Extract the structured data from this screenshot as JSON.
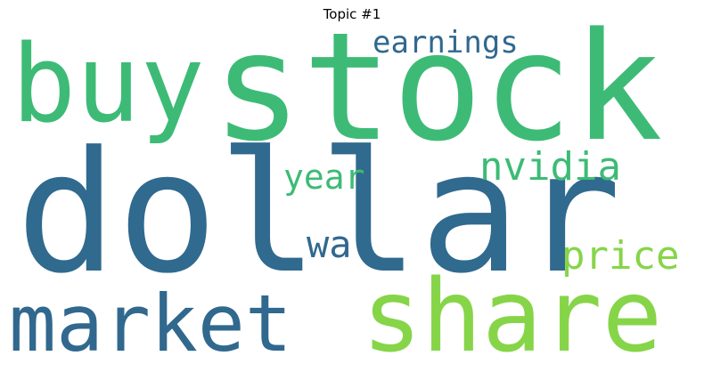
{
  "title": "Topic #1",
  "words": [
    {
      "text": "dollar",
      "color": "#306a8e"
    },
    {
      "text": "stock",
      "color": "#3dbb76"
    },
    {
      "text": "buy",
      "color": "#3dbb76"
    },
    {
      "text": "market",
      "color": "#31688e"
    },
    {
      "text": "share",
      "color": "#86d549"
    },
    {
      "text": "earnings",
      "color": "#31688e"
    },
    {
      "text": "nvidia",
      "color": "#3dbb76"
    },
    {
      "text": "year",
      "color": "#3dbb76"
    },
    {
      "text": "wa",
      "color": "#31688e"
    },
    {
      "text": "price",
      "color": "#86d549"
    }
  ]
}
